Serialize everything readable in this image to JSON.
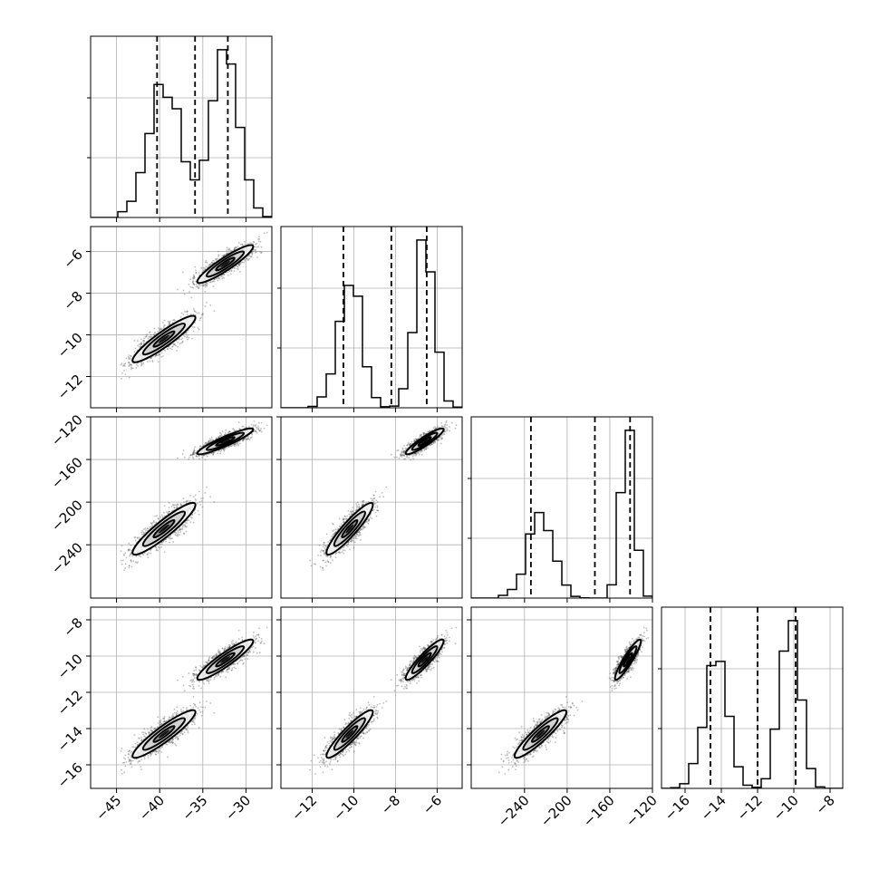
{
  "chart_data": {
    "type": "corner",
    "dimensions": [
      {
        "range": [
          -48,
          -27
        ],
        "ticks": [
          -45,
          -40,
          -35,
          -30
        ],
        "tick_labels": [
          "−45",
          "−40",
          "−35",
          "−30"
        ],
        "quantiles": [
          -40.3,
          -35.9,
          -32.1
        ],
        "modes": [
          {
            "center": -39.5,
            "sigma": 1.8,
            "weight": 0.47
          },
          {
            "center": -32.4,
            "sigma": 1.6,
            "weight": 0.53
          }
        ]
      },
      {
        "range": [
          -13.5,
          -4.8
        ],
        "ticks": [
          -12,
          -10,
          -8,
          -6
        ],
        "tick_labels": [
          "−12",
          "−10",
          "−8",
          "−6"
        ],
        "quantiles": [
          -10.5,
          -8.2,
          -6.5
        ],
        "modes": [
          {
            "center": -10.2,
            "sigma": 0.55,
            "weight": 0.47
          },
          {
            "center": -6.6,
            "sigma": 0.45,
            "weight": 0.53
          }
        ]
      },
      {
        "range": [
          -290,
          -120
        ],
        "ticks": [
          -240,
          -200,
          -160,
          -120
        ],
        "tick_labels": [
          "−240",
          "−200",
          "−160",
          "−120"
        ],
        "quantiles": [
          -234,
          -174,
          -141
        ],
        "modes": [
          {
            "center": -225,
            "sigma": 12,
            "weight": 0.47
          },
          {
            "center": -143,
            "sigma": 6,
            "weight": 0.53
          }
        ]
      },
      {
        "range": [
          -17.3,
          -7.3
        ],
        "ticks": [
          -16,
          -14,
          -12,
          -10,
          -8
        ],
        "tick_labels": [
          "−16",
          "−14",
          "−12",
          "−10",
          "−8"
        ],
        "quantiles": [
          -14.6,
          -12,
          -9.9
        ],
        "modes": [
          {
            "center": -14.3,
            "sigma": 0.65,
            "weight": 0.47
          },
          {
            "center": -10.2,
            "sigma": 0.55,
            "weight": 0.53
          }
        ]
      }
    ],
    "correlation": 0.92,
    "histogram_bins": 20,
    "contour_levels": [
      0.5,
      1.0,
      1.5
    ],
    "quantile_line_style": "dashed",
    "grid": true,
    "colors": {
      "line": "#000000",
      "scatter": "#444444",
      "grid": "#b0b0b0"
    }
  }
}
